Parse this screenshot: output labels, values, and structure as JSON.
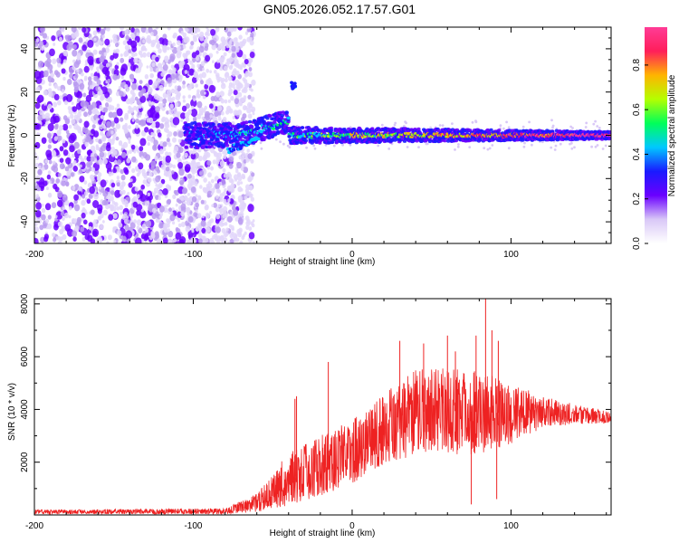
{
  "figure": {
    "title": "GN05.2026.052.17.57.G01"
  },
  "chart_data": [
    {
      "type": "heatmap",
      "name": "spectrogram",
      "xlabel": "Height of straight line (km)",
      "ylabel": "Frequency (Hz)",
      "xlim": [
        -200,
        163
      ],
      "ylim": [
        -50,
        50
      ],
      "x_ticks": [
        -200,
        -100,
        0,
        100
      ],
      "y_ticks": [
        -40,
        -20,
        0,
        20,
        40
      ],
      "colorbar": {
        "label": "Normalized spectral amplitude",
        "range": [
          0,
          0.97
        ],
        "ticks": [
          "0.0",
          "0.2",
          "0.4",
          "0.6",
          "0.8"
        ],
        "tick_values": [
          0.0,
          0.2,
          0.4,
          0.6,
          0.8
        ],
        "colormap_stops": [
          "#ffffff",
          "#d9c8f7",
          "#6a00ff",
          "#1a1aff",
          "#00c8ff",
          "#00ff5a",
          "#b4ff00",
          "#ffb400",
          "#ff1e5a",
          "#ff3c96"
        ]
      },
      "features": {
        "noise_region_km": [
          -200,
          -70
        ],
        "onset_km": -105,
        "carrier_frequency_hz": 0,
        "side_feature": {
          "km": -37,
          "hz": 23
        }
      }
    },
    {
      "type": "line",
      "name": "snr",
      "xlabel": "Height of straight line (km)",
      "ylabel": "SNR (10 * v/v)",
      "xlim": [
        -200,
        163
      ],
      "ylim": [
        0,
        8200
      ],
      "x_ticks": [
        -200,
        -100,
        0,
        100
      ],
      "y_ticks": [
        2000,
        4000,
        6000,
        8000
      ],
      "series": [
        {
          "name": "SNR",
          "color": "#ee2222",
          "envelope": [
            {
              "x": -200,
              "lo": 30,
              "hi": 200
            },
            {
              "x": -80,
              "lo": 30,
              "hi": 250
            },
            {
              "x": -60,
              "lo": 100,
              "hi": 800
            },
            {
              "x": -50,
              "lo": 200,
              "hi": 1500
            },
            {
              "x": -45,
              "lo": 300,
              "hi": 2000
            },
            {
              "x": -35,
              "lo": 400,
              "hi": 2600
            },
            {
              "x": -20,
              "lo": 700,
              "hi": 3000
            },
            {
              "x": 0,
              "lo": 1200,
              "hi": 3600
            },
            {
              "x": 20,
              "lo": 1800,
              "hi": 4600
            },
            {
              "x": 40,
              "lo": 2300,
              "hi": 5500
            },
            {
              "x": 60,
              "lo": 2300,
              "hi": 5600
            },
            {
              "x": 80,
              "lo": 2300,
              "hi": 5500
            },
            {
              "x": 100,
              "lo": 2700,
              "hi": 5000
            },
            {
              "x": 120,
              "lo": 3300,
              "hi": 4500
            },
            {
              "x": 140,
              "lo": 3400,
              "hi": 4200
            },
            {
              "x": 163,
              "lo": 3500,
              "hi": 3900
            }
          ],
          "spikes": [
            {
              "x": -36,
              "y": 4400
            },
            {
              "x": -35,
              "y": 4500
            },
            {
              "x": -15,
              "y": 5800
            },
            {
              "x": 30,
              "y": 6600
            },
            {
              "x": 45,
              "y": 6500
            },
            {
              "x": 60,
              "y": 6800
            },
            {
              "x": 65,
              "y": 6200
            },
            {
              "x": 78,
              "y": 6800
            },
            {
              "x": 84,
              "y": 8200
            },
            {
              "x": 88,
              "y": 7000
            },
            {
              "x": 92,
              "y": 6600
            },
            {
              "x": 75,
              "y": 400
            },
            {
              "x": 91,
              "y": 600
            }
          ]
        }
      ]
    }
  ]
}
